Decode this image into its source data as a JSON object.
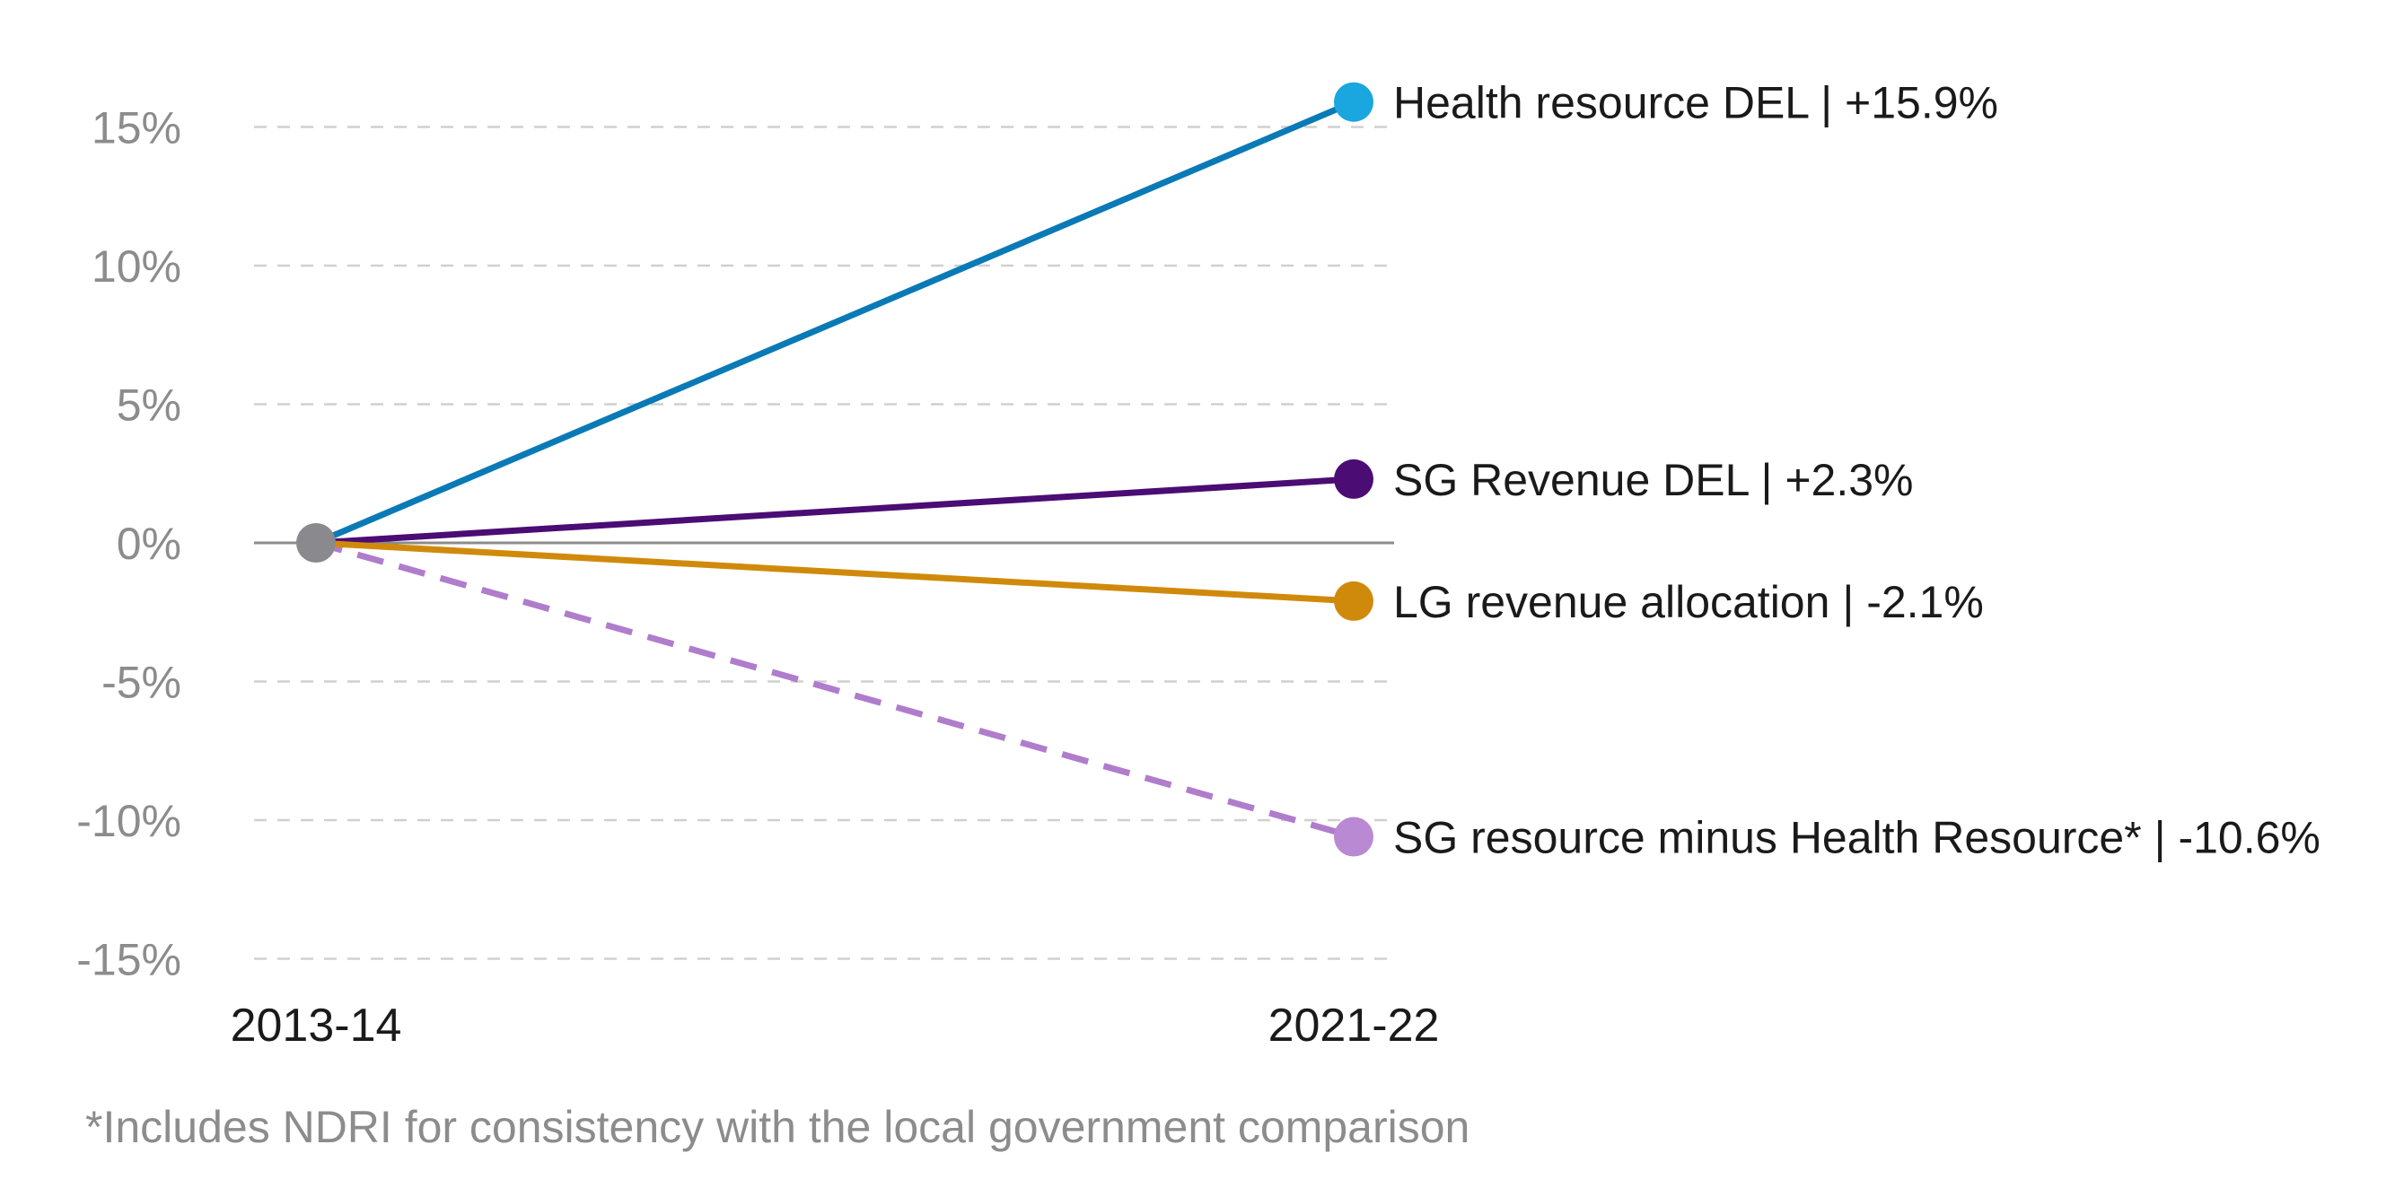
{
  "chart_data": {
    "type": "line",
    "title": "",
    "xlabel": "",
    "ylabel": "",
    "x": [
      "2013-14",
      "2021-22"
    ],
    "ylim": [
      -15,
      15
    ],
    "yticks": [
      15,
      10,
      5,
      0,
      -5,
      -10,
      -15
    ],
    "ytick_labels": [
      "15%",
      "10%",
      "5%",
      "0%",
      "-5%",
      "-10%",
      "-15%"
    ],
    "grid": true,
    "origin_color": "#8a8a8e",
    "series": [
      {
        "name": "Health resource DEL",
        "label": "Health resource DEL | +15.9%",
        "values": [
          0,
          15.9
        ],
        "color": "#0a7ab6",
        "marker_color": "#1aa6df",
        "dashed": false
      },
      {
        "name": "SG Revenue DEL",
        "label": "SG Revenue DEL | +2.3%",
        "values": [
          0,
          2.3
        ],
        "color": "#4b0c74",
        "marker_color": "#4b0c74",
        "dashed": false
      },
      {
        "name": "LG revenue allocation",
        "label": "LG revenue allocation | -2.1%",
        "values": [
          0,
          -2.1
        ],
        "color": "#d08a0b",
        "marker_color": "#d08a0b",
        "dashed": false
      },
      {
        "name": "SG resource minus Health Resource*",
        "label": "SG resource minus Health Resource* | -10.6%",
        "values": [
          0,
          -10.6
        ],
        "color": "#b07ccc",
        "marker_color": "#b98ad3",
        "dashed": true
      }
    ],
    "footnote": "*Includes NDRI for consistency with the local government comparison"
  }
}
